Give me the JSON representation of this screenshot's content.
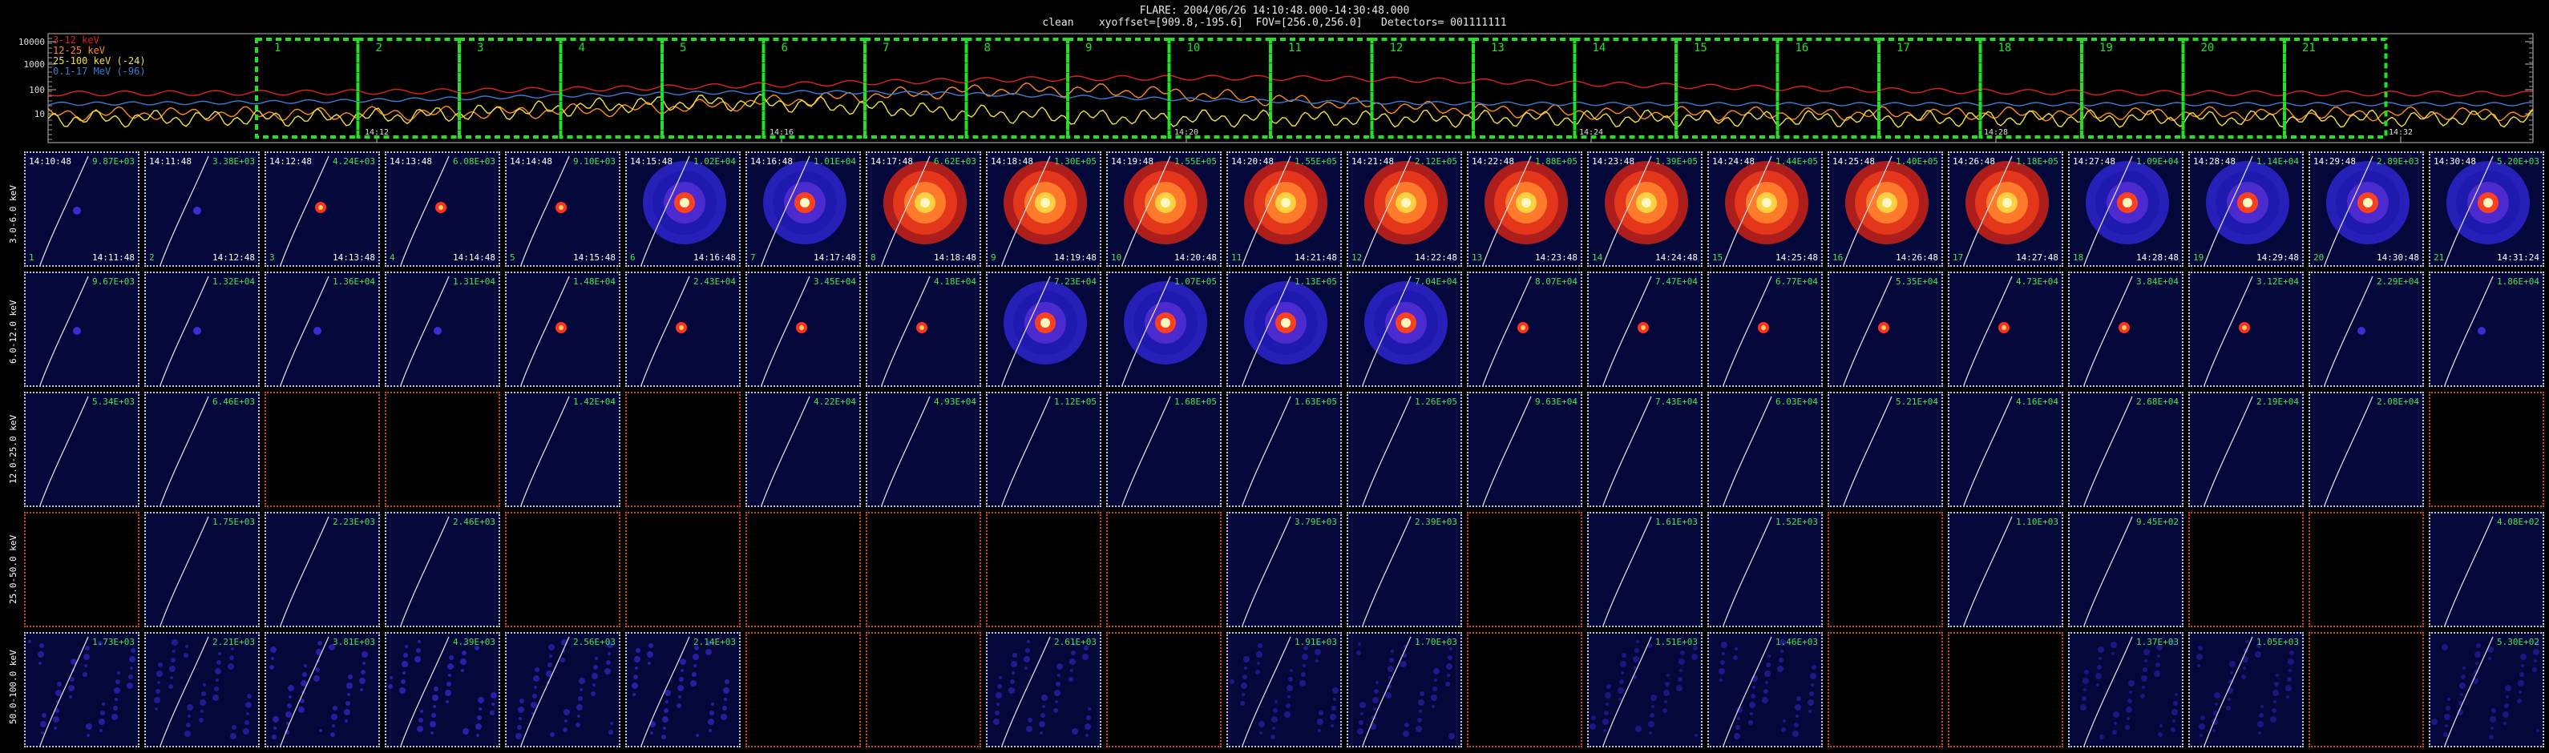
{
  "header": {
    "line1": "FLARE: 2004/06/26 14:10:48.000-14:30:48.000",
    "line2": "clean    xyoffset=[909.8,-195.6]  FOV=[256.0,256.0]   Detectors= 001111111"
  },
  "lightcurve": {
    "y_ticks": [
      "10000",
      "1000",
      "100",
      "10"
    ],
    "x_ticks": [
      "14:12",
      "14:16",
      "14:20",
      "14:24",
      "14:28",
      "14:32"
    ],
    "legend": [
      {
        "label": "3-12 keV",
        "color": "#e02020"
      },
      {
        "label": "12-25 keV",
        "color": "#ff8c1a"
      },
      {
        "label": "25-100 keV (-24)",
        "color": "#f0e040"
      },
      {
        "label": "0.1-17 MeV (-96)",
        "color": "#3a7bd5"
      }
    ],
    "interval_labels": [
      "1",
      "2",
      "3",
      "4",
      "5",
      "6",
      "7",
      "8",
      "9",
      "10",
      "11",
      "12",
      "13",
      "14",
      "15",
      "16",
      "17",
      "18",
      "19",
      "20",
      "21"
    ],
    "interval_color": "#22e022"
  },
  "energy_bands": [
    "3.0-6.0 keV",
    "6.0-12.0 keV",
    "12.0-25.0 keV",
    "25.0-50.0 keV",
    "50.0-100.0 keV"
  ],
  "start_times": [
    "14:10:48",
    "14:11:48",
    "14:12:48",
    "14:13:48",
    "14:14:48",
    "14:15:48",
    "14:16:48",
    "14:17:48",
    "14:18:48",
    "14:19:48",
    "14:20:48",
    "14:21:48",
    "14:22:48",
    "14:23:48",
    "14:24:48",
    "14:25:48",
    "14:26:48",
    "14:27:48",
    "14:28:48",
    "14:29:48",
    "14:30:48"
  ],
  "end_times": [
    "14:11:48",
    "14:12:48",
    "14:13:48",
    "14:14:48",
    "14:15:48",
    "14:16:48",
    "14:17:48",
    "14:18:48",
    "14:19:48",
    "14:20:48",
    "14:21:48",
    "14:22:48",
    "14:23:48",
    "14:24:48",
    "14:25:48",
    "14:26:48",
    "14:27:48",
    "14:28:48",
    "14:29:48",
    "14:30:48",
    "14:31:24"
  ],
  "rows": [
    {
      "band_index": 0,
      "maxima": [
        "9.87E+03",
        "3.38E+03",
        "4.24E+03",
        "6.08E+03",
        "9.10E+03",
        "1.02E+04",
        "1.01E+04",
        "6.62E+03",
        "1.30E+05",
        "1.55E+05",
        "1.55E+05",
        "2.12E+05",
        "1.88E+05",
        "1.39E+05",
        "1.44E+05",
        "1.40E+05",
        "1.18E+05",
        "1.09E+04",
        "1.14E+04",
        "2.89E+03",
        "5.20E+03"
      ],
      "valid": [
        true,
        true,
        true,
        true,
        true,
        true,
        true,
        true,
        true,
        true,
        true,
        true,
        true,
        true,
        true,
        true,
        true,
        true,
        true,
        true,
        true
      ]
    },
    {
      "band_index": 1,
      "maxima": [
        "9.67E+03",
        "1.32E+04",
        "1.36E+04",
        "1.31E+04",
        "1.48E+04",
        "2.43E+04",
        "3.45E+04",
        "4.18E+04",
        "7.23E+04",
        "1.07E+05",
        "1.13E+05",
        "7.04E+04",
        "8.07E+04",
        "7.47E+04",
        "6.77E+04",
        "5.35E+04",
        "4.73E+04",
        "3.84E+04",
        "3.12E+04",
        "2.29E+04",
        "1.86E+04"
      ],
      "valid": [
        true,
        true,
        true,
        true,
        true,
        true,
        true,
        true,
        true,
        true,
        true,
        true,
        true,
        true,
        true,
        true,
        true,
        true,
        true,
        true,
        true
      ]
    },
    {
      "band_index": 2,
      "maxima": [
        "5.34E+03",
        "6.46E+03",
        "",
        "",
        "1.42E+04",
        "",
        "4.22E+04",
        "4.93E+04",
        "1.12E+05",
        "1.68E+05",
        "1.63E+05",
        "1.26E+05",
        "9.63E+04",
        "7.43E+04",
        "6.03E+04",
        "5.21E+04",
        "4.16E+04",
        "2.68E+04",
        "2.19E+04",
        "2.08E+04",
        ""
      ],
      "valid": [
        true,
        true,
        false,
        false,
        true,
        false,
        true,
        true,
        true,
        true,
        true,
        true,
        true,
        true,
        true,
        true,
        true,
        true,
        true,
        true,
        false
      ]
    },
    {
      "band_index": 3,
      "maxima": [
        "",
        "1.75E+03",
        "2.23E+03",
        "2.46E+03",
        "",
        "",
        "",
        "",
        "",
        "",
        "3.79E+03",
        "2.39E+03",
        "",
        "1.61E+03",
        "1.52E+03",
        "",
        "1.10E+03",
        "9.45E+02",
        "",
        "",
        "4.08E+02"
      ],
      "valid": [
        false,
        true,
        true,
        true,
        false,
        false,
        false,
        false,
        false,
        false,
        true,
        true,
        false,
        true,
        true,
        false,
        true,
        true,
        false,
        false,
        true
      ]
    },
    {
      "band_index": 4,
      "maxima": [
        "1.73E+03",
        "2.21E+03",
        "3.81E+03",
        "4.39E+03",
        "2.56E+03",
        "2.14E+03",
        "",
        "",
        "2.61E+03",
        "",
        "1.91E+03",
        "1.70E+03",
        "",
        "1.51E+03",
        "1.46E+03",
        "",
        "",
        "1.37E+03",
        "1.05E+03",
        "",
        "5.30E+02"
      ],
      "valid": [
        true,
        true,
        true,
        true,
        true,
        true,
        false,
        false,
        true,
        false,
        true,
        true,
        false,
        true,
        true,
        false,
        false,
        true,
        true,
        false,
        true
      ]
    }
  ],
  "intensity_pattern": {
    "row0": [
      0.05,
      0.04,
      0.08,
      0.1,
      0.15,
      0.55,
      0.6,
      0.7,
      0.8,
      0.95,
      0.95,
      0.9,
      0.85,
      0.85,
      0.8,
      0.75,
      0.7,
      0.6,
      0.55,
      0.45,
      0.35
    ],
    "row1": [
      0.04,
      0.05,
      0.05,
      0.05,
      0.08,
      0.1,
      0.15,
      0.2,
      0.45,
      0.55,
      0.5,
      0.45,
      0.3,
      0.18,
      0.15,
      0.15,
      0.12,
      0.1,
      0.08,
      0.06,
      0.05
    ],
    "row2": [
      0.02,
      0.02,
      0,
      0,
      0.03,
      0,
      0.02,
      0.02,
      0.02,
      0.02,
      0.02,
      0.02,
      0.02,
      0.02,
      0.02,
      0.02,
      0.02,
      0.02,
      0.02,
      0.02,
      0
    ],
    "row3": [
      0,
      0.02,
      0.02,
      0.02,
      0,
      0,
      0,
      0,
      0,
      0,
      0.02,
      0.02,
      0,
      0.02,
      0.02,
      0,
      0.02,
      0.02,
      0,
      0,
      0.02
    ],
    "row4": [
      0.3,
      0.25,
      0.35,
      0.4,
      0.3,
      0.35,
      0,
      0,
      0.25,
      0,
      0.2,
      0.2,
      0,
      0.15,
      0.2,
      0,
      0,
      0.15,
      0.15,
      0,
      0.15
    ]
  }
}
